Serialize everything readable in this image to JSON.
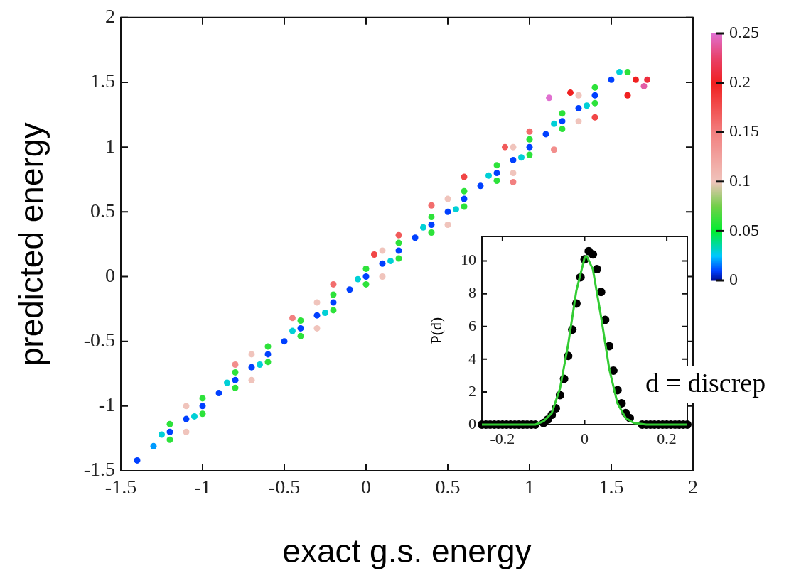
{
  "chart_data": [
    {
      "type": "scatter",
      "xlabel": "exact g.s. energy",
      "ylabel": "predicted energy",
      "marker": "circle",
      "xlim": [
        -1.5,
        2
      ],
      "xticks": [
        -1.5,
        -1,
        -0.5,
        0,
        0.5,
        1,
        1.5,
        2
      ],
      "ylim": [
        -1.5,
        2
      ],
      "yticks": [
        -1.5,
        -1,
        -0.5,
        0,
        0.5,
        1,
        1.5,
        2
      ],
      "clim": [
        0,
        0.25
      ],
      "cticks": [
        0,
        0.05,
        0.1,
        0.15,
        0.2,
        0.25
      ],
      "x": [
        -1.1,
        -1.1,
        -0.7,
        -0.7,
        -0.3,
        -0.3,
        0.1,
        0.1,
        0.5,
        0.5,
        0.9,
        0.9,
        1.3,
        1.3,
        -1.2,
        -1.2,
        -1,
        -1,
        -0.8,
        -0.8,
        -0.6,
        -0.6,
        -0.4,
        -0.4,
        -0.2,
        -0.2,
        0,
        0,
        0.2,
        0.2,
        0.4,
        0.4,
        0.6,
        0.6,
        0.8,
        0.8,
        1,
        1,
        1.2,
        1.2,
        1.4,
        1.4,
        1.6,
        -0.8,
        -0.45,
        -0.2,
        0.05,
        0.2,
        0.4,
        0.6,
        0.85,
        0.9,
        1,
        1.15,
        1.25,
        1.4,
        1.6,
        1.65,
        1.72,
        1.7,
        1.12,
        -1.25,
        -1.05,
        -0.85,
        -0.65,
        -0.45,
        -0.25,
        -0.05,
        0.15,
        0.35,
        0.55,
        0.75,
        0.95,
        1.15,
        1.35,
        1.55,
        -1.4,
        -1.3,
        -1.2,
        -1.1,
        -1,
        -0.9,
        -0.8,
        -0.7,
        -0.6,
        -0.5,
        -0.4,
        -0.3,
        -0.2,
        -0.1,
        0,
        0.1,
        0.2,
        0.3,
        0.4,
        0.5,
        0.6,
        0.7,
        0.8,
        0.9,
        1,
        1.1,
        1.2,
        1.3,
        1.4,
        1.5
      ],
      "values": [
        -1,
        -1.2,
        -0.6,
        -0.8,
        -0.2,
        -0.4,
        0.2,
        0,
        0.6,
        0.4,
        1,
        0.8,
        1.4,
        1.2,
        -1.14,
        -1.26,
        -0.94,
        -1.06,
        -0.74,
        -0.86,
        -0.54,
        -0.66,
        -0.34,
        -0.46,
        -0.14,
        -0.26,
        0.06,
        -0.06,
        0.26,
        0.14,
        0.46,
        0.34,
        0.66,
        0.54,
        0.86,
        0.74,
        1.06,
        0.94,
        1.26,
        1.14,
        1.46,
        1.34,
        1.58,
        -0.68,
        -0.32,
        -0.06,
        0.17,
        0.32,
        0.55,
        0.77,
        1,
        0.73,
        1.12,
        0.98,
        1.42,
        1.23,
        1.4,
        1.52,
        1.52,
        1.47,
        1.38,
        -1.22,
        -1.08,
        -0.82,
        -0.68,
        -0.42,
        -0.28,
        -0.02,
        0.12,
        0.38,
        0.52,
        0.78,
        0.92,
        1.18,
        1.32,
        1.58,
        -1.42,
        -1.31,
        -1.2,
        -1.1,
        -1,
        -0.9,
        -0.8,
        -0.7,
        -0.6,
        -0.5,
        -0.4,
        -0.3,
        -0.2,
        -0.1,
        0,
        0.1,
        0.2,
        0.3,
        0.4,
        0.5,
        0.6,
        0.7,
        0.8,
        0.9,
        1,
        1.1,
        1.2,
        1.3,
        1.4,
        1.52
      ],
      "cvalues": [
        0.1,
        0.1,
        0.1,
        0.1,
        0.1,
        0.1,
        0.1,
        0.1,
        0.1,
        0.1,
        0.1,
        0.1,
        0.1,
        0.1,
        0.06,
        0.06,
        0.06,
        0.06,
        0.06,
        0.06,
        0.06,
        0.06,
        0.06,
        0.06,
        0.06,
        0.06,
        0.06,
        0.06,
        0.06,
        0.06,
        0.06,
        0.06,
        0.06,
        0.06,
        0.06,
        0.06,
        0.06,
        0.06,
        0.06,
        0.06,
        0.06,
        0.06,
        0.06,
        0.14,
        0.15,
        0.16,
        0.18,
        0.17,
        0.16,
        0.18,
        0.17,
        0.15,
        0.16,
        0.14,
        0.2,
        0.18,
        0.2,
        0.2,
        0.21,
        0.24,
        0.25,
        0.03,
        0.03,
        0.03,
        0.03,
        0.03,
        0.03,
        0.03,
        0.03,
        0.03,
        0.03,
        0.03,
        0.03,
        0.03,
        0.03,
        0.03,
        0.01,
        0.02,
        0.01,
        0.01,
        0.01,
        0.01,
        0.01,
        0.01,
        0.01,
        0.01,
        0.01,
        0.01,
        0.01,
        0.01,
        0.01,
        0.01,
        0.01,
        0.01,
        0.01,
        0.01,
        0.01,
        0.01,
        0.01,
        0.01,
        0.01,
        0.01,
        0.01,
        0.01,
        0.01,
        0.01
      ]
    },
    {
      "type": "scatter",
      "ylabel": "P(d)",
      "xlim": [
        -0.25,
        0.25
      ],
      "xticks": [
        -0.2,
        0,
        0.2
      ],
      "ylim": [
        0,
        11.5
      ],
      "yticks": [
        0,
        2,
        4,
        6,
        8,
        10
      ],
      "annotations": [
        "d = discrep"
      ],
      "series": [
        {
          "type": "scatter",
          "color": "#000000",
          "marker": "circle",
          "x": [
            -0.25,
            -0.24,
            -0.23,
            -0.22,
            -0.21,
            -0.2,
            -0.19,
            -0.18,
            -0.17,
            -0.16,
            -0.15,
            -0.14,
            -0.13,
            -0.12,
            -0.11,
            -0.1,
            -0.09,
            -0.08,
            -0.07,
            -0.06,
            -0.05,
            -0.04,
            -0.03,
            -0.02,
            -0.01,
            0,
            0.01,
            0.02,
            0.03,
            0.04,
            0.05,
            0.06,
            0.07,
            0.08,
            0.09,
            0.1,
            0.11,
            0.12,
            0.13,
            0.14,
            0.15,
            0.16,
            0.17,
            0.18,
            0.19,
            0.2,
            0.21,
            0.22,
            0.23,
            0.24,
            0.25
          ],
          "values": [
            0,
            0,
            0,
            0,
            0,
            0,
            0,
            0,
            0,
            0,
            0,
            0,
            0,
            0,
            null,
            0.1,
            0.3,
            0.6,
            1,
            1.8,
            2.8,
            4.2,
            5.8,
            7.4,
            9,
            10.1,
            10.6,
            10.4,
            9.5,
            8.1,
            6.4,
            4.8,
            3.3,
            2.1,
            1.3,
            0.7,
            0.4,
            null,
            null,
            0,
            0,
            0,
            0,
            0,
            0,
            0,
            0,
            0,
            0,
            0,
            0
          ]
        },
        {
          "type": "line",
          "color": "#33cc33",
          "marker": "none",
          "x": [
            -0.25,
            -0.15,
            -0.12,
            -0.1,
            -0.08,
            -0.06,
            -0.04,
            -0.02,
            0,
            0.005,
            0.02,
            0.04,
            0.06,
            0.08,
            0.1,
            0.12,
            0.15,
            0.25
          ],
          "values": [
            0,
            0,
            0,
            0.2,
            0.7,
            2.2,
            4.9,
            8.2,
            10.2,
            10.3,
            9.5,
            6.6,
            3.4,
            1.3,
            0.4,
            0.1,
            0,
            0
          ]
        }
      ]
    }
  ]
}
